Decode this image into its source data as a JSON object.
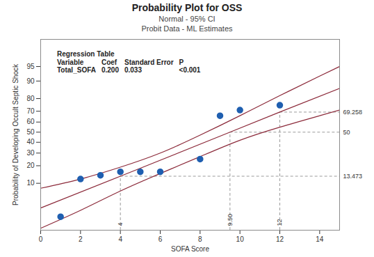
{
  "chart_data": {
    "type": "scatter",
    "title": "Probability Plot for OSS",
    "subtitle": [
      "Normal - 95% CI",
      "Probit Data - ML Estimates"
    ],
    "x_label": "SOFA Score",
    "y_label": "Probability of Developing Occult Septic Shock",
    "xlim": [
      0,
      15
    ],
    "xticks": [
      0,
      2,
      4,
      6,
      8,
      10,
      12,
      14
    ],
    "ylim": [
      0.7,
      99
    ],
    "yticks": [
      10,
      20,
      30,
      40,
      50,
      60,
      70,
      80,
      90,
      95
    ],
    "points": {
      "x": [
        1,
        2,
        3,
        4,
        5,
        6,
        8,
        9,
        10,
        12
      ],
      "values": [
        1.7,
        12,
        14,
        16,
        16,
        16,
        25,
        66,
        71,
        75
      ],
      "color": "#1f5fb0",
      "marker": "circle"
    },
    "fit": {
      "x": [
        0,
        4,
        9.5,
        12,
        15
      ],
      "values": [
        2.87,
        13.473,
        50,
        69.258,
        86.4
      ],
      "color": "#8c2a3a"
    },
    "ci_upper": {
      "x": [
        0,
        2,
        4,
        6,
        8,
        10,
        12,
        14,
        15
      ],
      "values": [
        8,
        12,
        19,
        30,
        47,
        66,
        82,
        92,
        95
      ],
      "color": "#8c2a3a"
    },
    "ci_lower": {
      "x": [
        0,
        2,
        4,
        6,
        8,
        10,
        12,
        14,
        15
      ],
      "values": [
        0.8,
        2.5,
        7,
        15,
        27,
        42,
        55,
        66,
        71
      ],
      "color": "#8c2a3a"
    },
    "reference_lines": [
      {
        "x": 4,
        "y": 13.473,
        "x_label": "4",
        "y_label": "13.473"
      },
      {
        "x": 9.5,
        "y": 50,
        "x_label": "9.50",
        "y_label": "50"
      },
      {
        "x": 12,
        "y": 69.258,
        "x_label": "12",
        "y_label": "69.258"
      }
    ],
    "regression_table": {
      "title": "Regression Table",
      "header": [
        "Variable",
        "Coef",
        "Standard Error",
        "P"
      ],
      "rows": [
        [
          "Total_SOFA",
          "0.200",
          "0.033",
          "<0.001"
        ]
      ]
    }
  }
}
